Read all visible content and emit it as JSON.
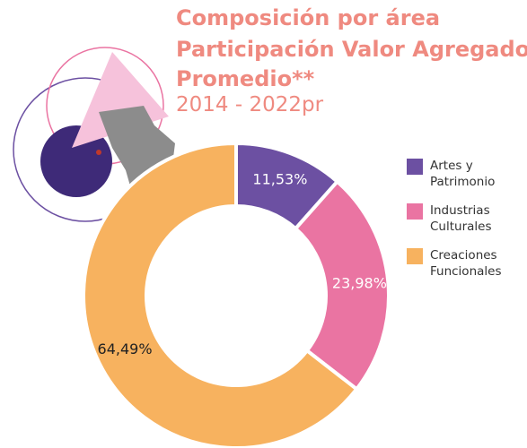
{
  "chart_data": {
    "type": "donut",
    "title": [
      "Composición por área",
      "Participación Valor Agregado",
      "Promedio**"
    ],
    "subtitle": "2014 - 2022pr",
    "categories": [
      "Artes y Patrimonio",
      "Industrias Culturales",
      "Creaciones Funcionales"
    ],
    "values": [
      11.53,
      23.98,
      64.49
    ],
    "value_labels": [
      "11,53%",
      "23,98%",
      "64,49%"
    ],
    "colors": [
      "#6c50a2",
      "#ea74a2",
      "#f7b25f"
    ],
    "value_label_colors": [
      "#ffffff",
      "#ffffff",
      "#222222"
    ],
    "legend": "right"
  }
}
